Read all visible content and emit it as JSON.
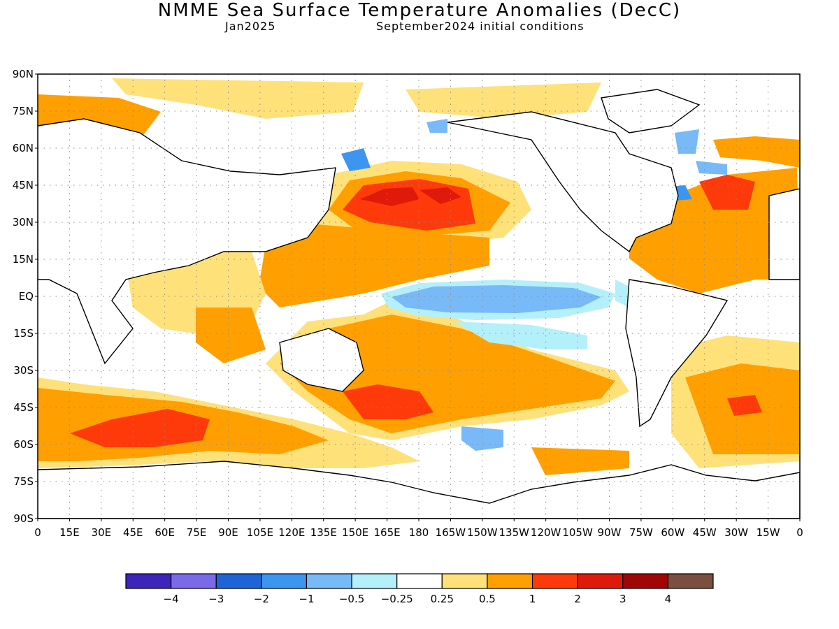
{
  "title": "NMME Sea Surface Temperature Anomalies (DecC)",
  "subtitle_left": "Jan2025",
  "subtitle_right": "September2024 initial conditions",
  "lat_labels": [
    "90N",
    "75N",
    "60N",
    "45N",
    "30N",
    "15N",
    "EQ",
    "15S",
    "30S",
    "45S",
    "60S",
    "75S",
    "90S"
  ],
  "lon_labels": [
    "0",
    "15E",
    "30E",
    "45E",
    "60E",
    "75E",
    "90E",
    "105E",
    "120E",
    "135E",
    "150E",
    "165E",
    "180",
    "165W",
    "150W",
    "135W",
    "120W",
    "105W",
    "90W",
    "75W",
    "60W",
    "45W",
    "30W",
    "15W",
    "0"
  ],
  "colorbar": {
    "colors": [
      "#3c25b8",
      "#7b6ae8",
      "#1f64d6",
      "#3c96f0",
      "#78b9f7",
      "#b4f0fa",
      "#ffffff",
      "#ffe17a",
      "#ffa000",
      "#ff3a0a",
      "#e01a0a",
      "#a10505",
      "#7a4f40"
    ],
    "labels": [
      "−4",
      "−3",
      "−2",
      "−1",
      "−0.5",
      "−0.25",
      "0.25",
      "0.5",
      "1",
      "2",
      "3",
      "4"
    ]
  }
}
